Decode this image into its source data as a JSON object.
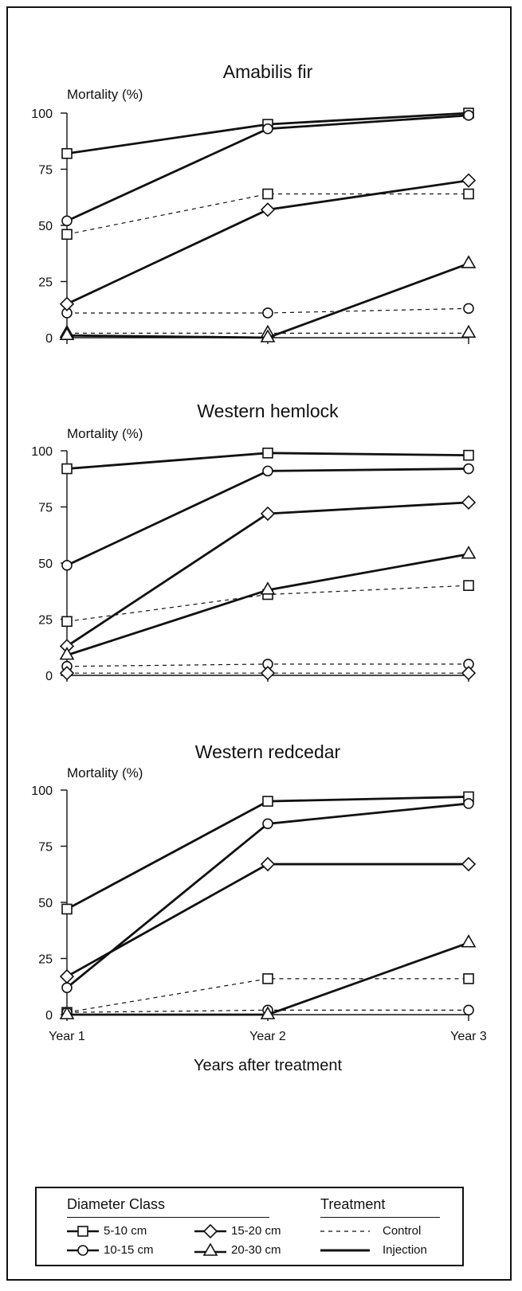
{
  "chart_data": [
    {
      "type": "line",
      "title": "Amabilis fir",
      "ylabel": "Mortality (%)",
      "xlabel": "",
      "categories": [
        "Year 1",
        "Year 2",
        "Year 3"
      ],
      "ylim": [
        0,
        100
      ],
      "yticks": [
        "0",
        "25",
        "50",
        "75",
        "100"
      ],
      "show_xtick_labels": false,
      "series": [
        {
          "name": "5-10 cm",
          "treatment": "Injection",
          "marker": "square",
          "values": [
            82,
            95,
            100
          ]
        },
        {
          "name": "10-15 cm",
          "treatment": "Injection",
          "marker": "circle",
          "values": [
            52,
            93,
            99
          ]
        },
        {
          "name": "15-20 cm",
          "treatment": "Injection",
          "marker": "diamond",
          "values": [
            15,
            57,
            70
          ]
        },
        {
          "name": "20-30 cm",
          "treatment": "Injection",
          "marker": "triangle",
          "values": [
            1,
            0,
            33
          ]
        },
        {
          "name": "5-10 cm",
          "treatment": "Control",
          "marker": "square",
          "values": [
            46,
            64,
            64
          ]
        },
        {
          "name": "10-15 cm",
          "treatment": "Control",
          "marker": "circle",
          "values": [
            11,
            11,
            13
          ]
        },
        {
          "name": "20-30 cm",
          "treatment": "Control",
          "marker": "triangle",
          "values": [
            2,
            2,
            2
          ]
        }
      ]
    },
    {
      "type": "line",
      "title": "Western hemlock",
      "ylabel": "Mortality (%)",
      "xlabel": "",
      "categories": [
        "Year 1",
        "Year 2",
        "Year 3"
      ],
      "ylim": [
        0,
        100
      ],
      "yticks": [
        "0",
        "25",
        "50",
        "75",
        "100"
      ],
      "show_xtick_labels": false,
      "series": [
        {
          "name": "5-10 cm",
          "treatment": "Injection",
          "marker": "square",
          "values": [
            92,
            99,
            98
          ]
        },
        {
          "name": "10-15 cm",
          "treatment": "Injection",
          "marker": "circle",
          "values": [
            49,
            91,
            92
          ]
        },
        {
          "name": "15-20 cm",
          "treatment": "Injection",
          "marker": "diamond",
          "values": [
            13,
            72,
            77
          ]
        },
        {
          "name": "20-30 cm",
          "treatment": "Injection",
          "marker": "triangle",
          "values": [
            9,
            38,
            54
          ]
        },
        {
          "name": "5-10 cm",
          "treatment": "Control",
          "marker": "square",
          "values": [
            24,
            36,
            40
          ]
        },
        {
          "name": "10-15 cm",
          "treatment": "Control",
          "marker": "circle",
          "values": [
            4,
            5,
            5
          ]
        },
        {
          "name": "15-20 cm",
          "treatment": "Control",
          "marker": "diamond",
          "values": [
            1,
            1,
            1
          ]
        }
      ]
    },
    {
      "type": "line",
      "title": "Western redcedar",
      "ylabel": "Mortality (%)",
      "xlabel": "Years after treatment",
      "categories": [
        "Year 1",
        "Year 2",
        "Year 3"
      ],
      "ylim": [
        0,
        100
      ],
      "yticks": [
        "0",
        "25",
        "50",
        "75",
        "100"
      ],
      "show_xtick_labels": true,
      "series": [
        {
          "name": "5-10 cm",
          "treatment": "Injection",
          "marker": "square",
          "values": [
            47,
            95,
            97
          ]
        },
        {
          "name": "10-15 cm",
          "treatment": "Injection",
          "marker": "circle",
          "values": [
            12,
            85,
            94
          ]
        },
        {
          "name": "15-20 cm",
          "treatment": "Injection",
          "marker": "diamond",
          "values": [
            17,
            67,
            67
          ]
        },
        {
          "name": "20-30 cm",
          "treatment": "Injection",
          "marker": "triangle",
          "values": [
            0,
            0,
            32
          ]
        },
        {
          "name": "5-10 cm",
          "treatment": "Control",
          "marker": "square",
          "values": [
            1,
            16,
            16
          ]
        },
        {
          "name": "10-15 cm",
          "treatment": "Control",
          "marker": "circle",
          "values": [
            1,
            2,
            2
          ]
        }
      ]
    }
  ],
  "legend": {
    "diameter_heading": "Diameter Class",
    "treatment_heading": "Treatment",
    "diameter_items": [
      {
        "label": "5-10 cm",
        "marker": "square"
      },
      {
        "label": "15-20 cm",
        "marker": "diamond"
      },
      {
        "label": "10-15 cm",
        "marker": "circle"
      },
      {
        "label": "20-30 cm",
        "marker": "triangle"
      }
    ],
    "treatment_items": [
      {
        "label": "Control",
        "style": "dashed"
      },
      {
        "label": "Injection",
        "style": "solid"
      }
    ]
  }
}
